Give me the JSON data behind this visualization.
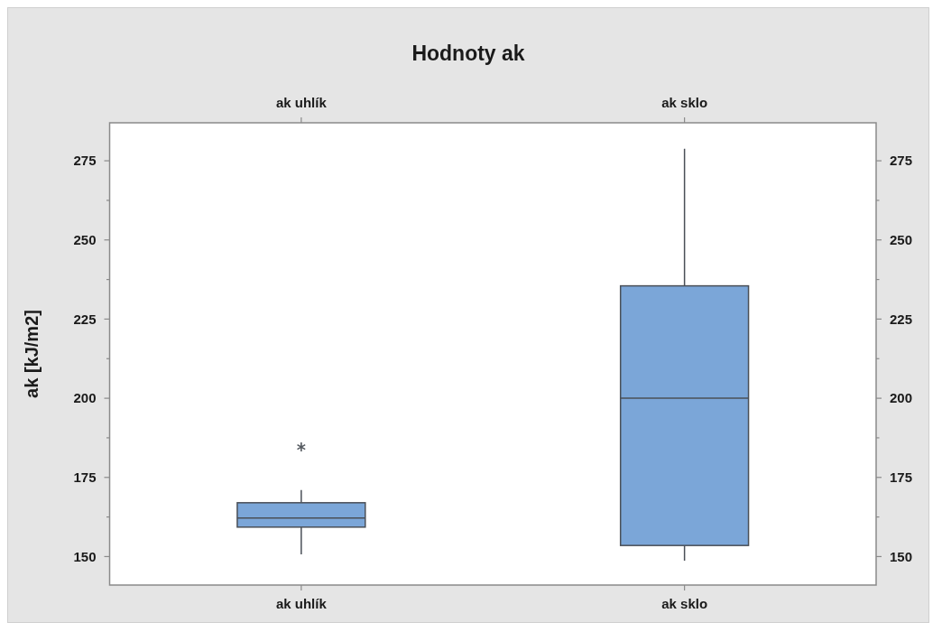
{
  "chart_data": {
    "type": "box",
    "title": "Hodnoty ak",
    "ylabel": "ak [kJ/m2]",
    "categories": [
      "ak uhlík",
      "ak sklo"
    ],
    "boxes": [
      {
        "low": 150.7,
        "q1": 159.3,
        "median": 162.2,
        "q3": 167,
        "high": 171,
        "outliers": [
          184.6
        ]
      },
      {
        "low": 148.7,
        "q1": 153.5,
        "median": 200,
        "q3": 235.5,
        "high": 278.8
      }
    ],
    "color": "#7ba6d8",
    "marker": "star",
    "ylim": [
      141,
      287
    ],
    "yticks": [
      150,
      {
        "value": 162.5,
        "label": null
      },
      175,
      {
        "value": 187.5,
        "label": null
      },
      200,
      {
        "value": 212.5,
        "label": null
      },
      225,
      {
        "value": 237.5,
        "label": null
      },
      250,
      {
        "value": 262.5,
        "label": null
      },
      275
    ],
    "y2lim": [
      141,
      287
    ],
    "y2ticks": [
      150,
      {
        "value": 162.5,
        "label": null
      },
      175,
      {
        "value": 187.5,
        "label": null
      },
      200,
      {
        "value": 212.5,
        "label": null
      },
      225,
      {
        "value": 237.5,
        "label": null
      },
      250,
      {
        "value": 262.5,
        "label": null
      },
      275
    ]
  }
}
